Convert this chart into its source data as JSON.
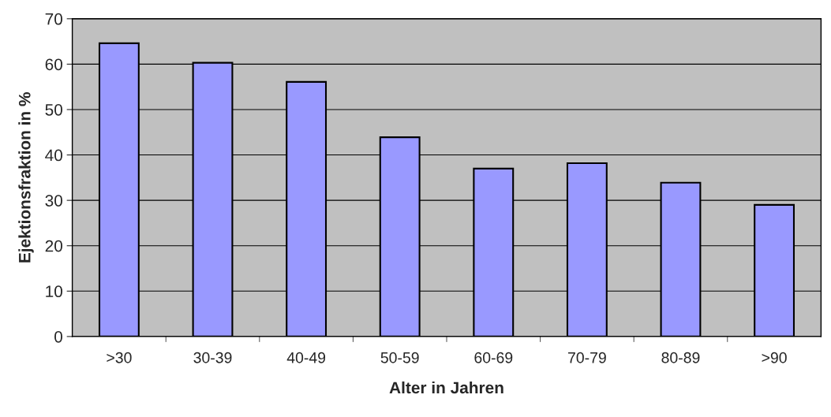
{
  "chart_data": {
    "type": "bar",
    "xlabel": "Alter in Jahren",
    "ylabel": "Ejektionsfraktion in %",
    "categories": [
      ">30",
      "30-39",
      "40-49",
      "50-59",
      "60-69",
      "70-79",
      "80-89",
      ">90"
    ],
    "values": [
      64.6,
      60.3,
      56.1,
      43.9,
      37.0,
      38.2,
      33.9,
      29.0
    ],
    "color": "#9999ff",
    "ylim": [
      0,
      70
    ],
    "yticks": [
      0,
      10,
      20,
      30,
      40,
      50,
      60,
      70
    ],
    "grid": "y"
  }
}
